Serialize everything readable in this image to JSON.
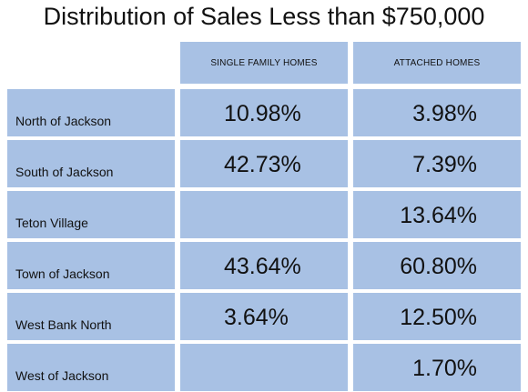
{
  "title": "Distribution of Sales Less than $750,000",
  "colors": {
    "cell_fill": "#a8c1e4",
    "background": "#ffffff",
    "text": "#111111"
  },
  "chart_data": {
    "type": "table",
    "title": "Distribution of Sales Less than $750,000",
    "columns": [
      "SINGLE FAMILY HOMES",
      "ATTACHED HOMES"
    ],
    "rows": [
      {
        "label": "North of Jackson",
        "values": [
          "10.98%",
          "3.98%"
        ]
      },
      {
        "label": "South of Jackson",
        "values": [
          "42.73%",
          "7.39%"
        ]
      },
      {
        "label": "Teton Village",
        "values": [
          "",
          "13.64%"
        ]
      },
      {
        "label": "Town of Jackson",
        "values": [
          "43.64%",
          "60.80%"
        ]
      },
      {
        "label": "West Bank North",
        "values": [
          "3.64%",
          "12.50%"
        ]
      },
      {
        "label": "West of Jackson",
        "values": [
          "",
          "1.70%"
        ]
      }
    ]
  }
}
